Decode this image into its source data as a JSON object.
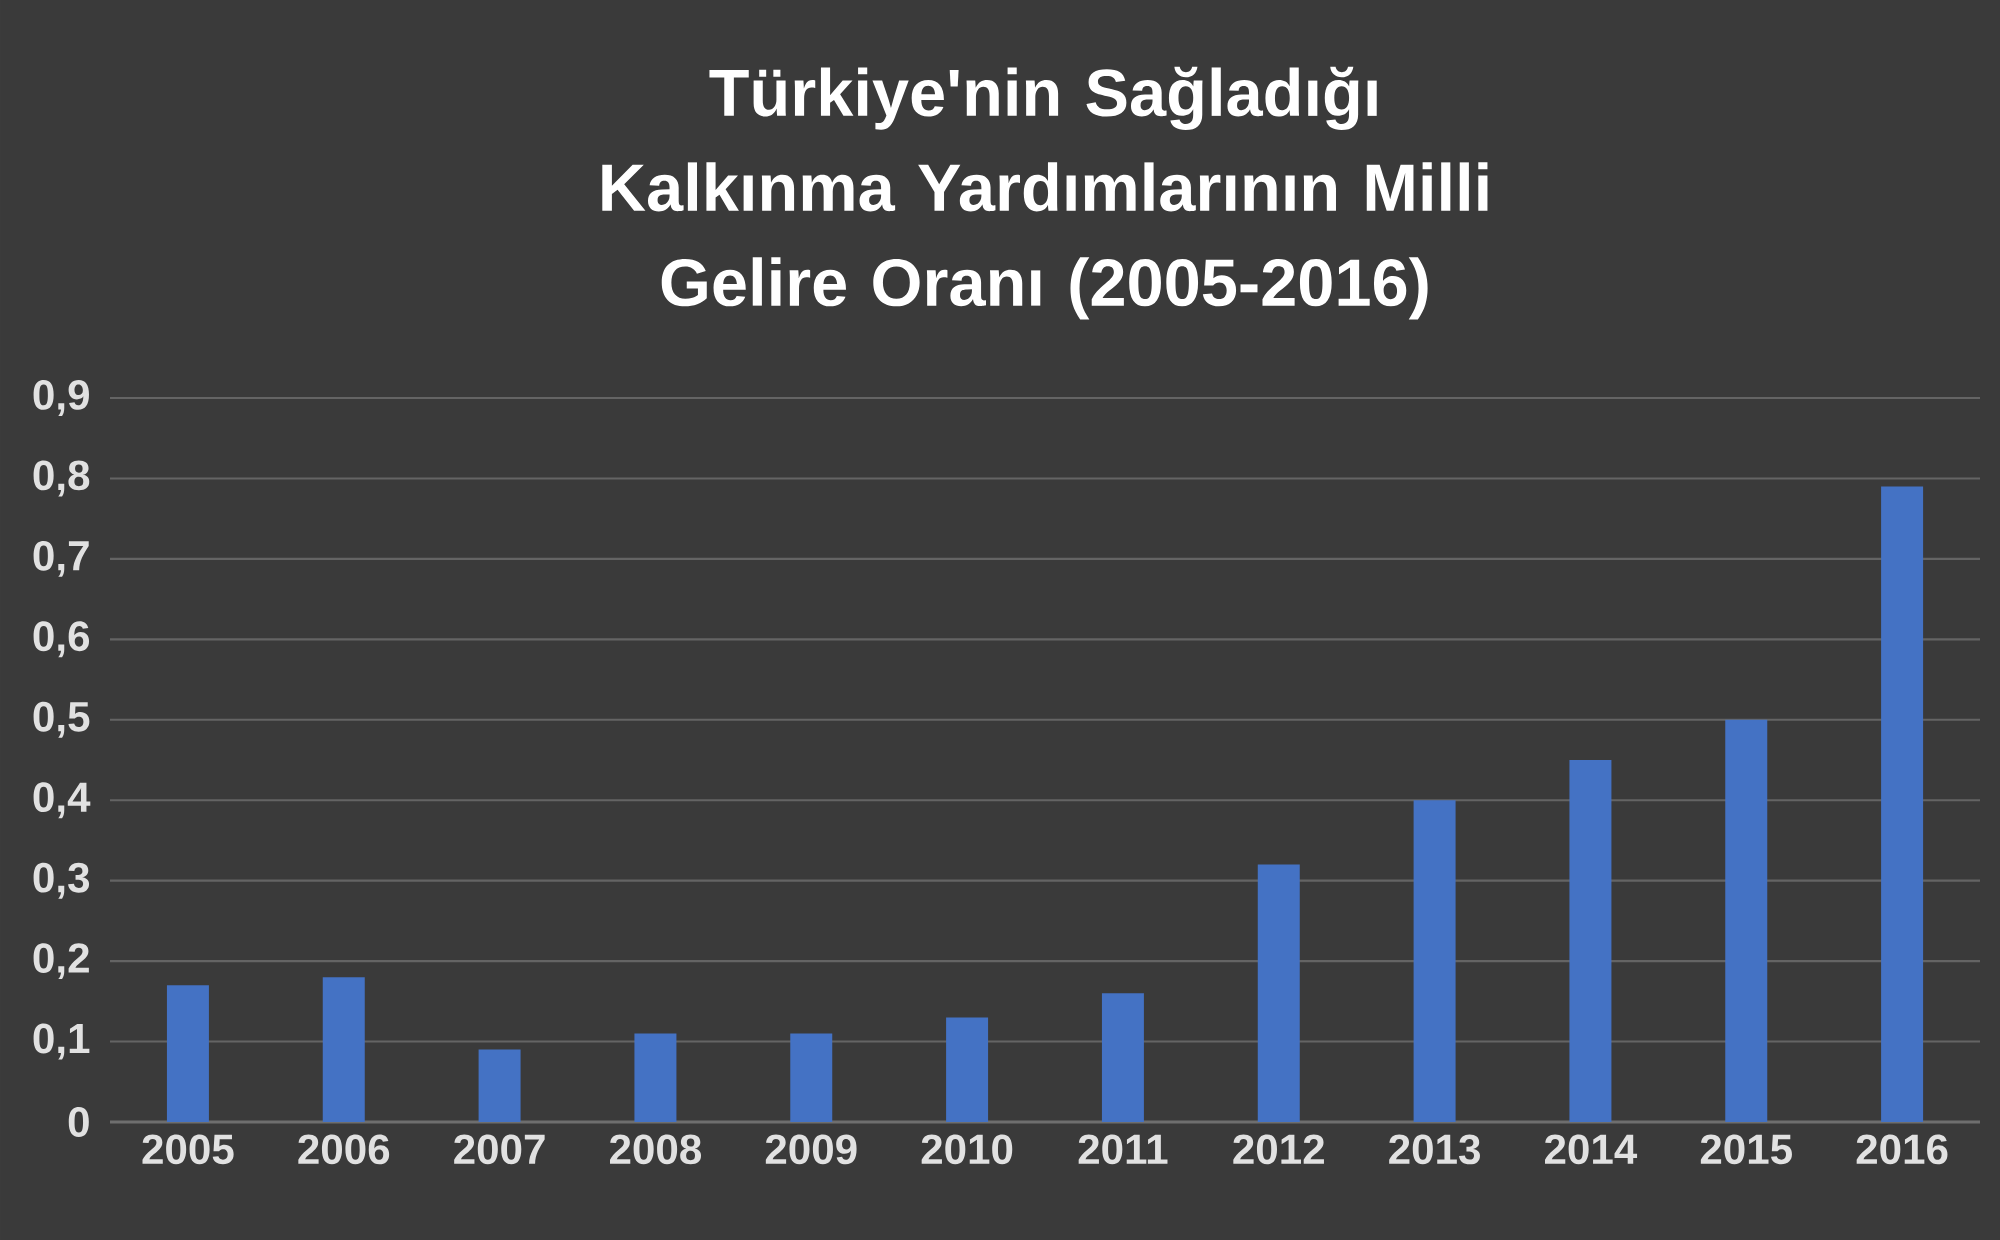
{
  "chart_data": {
    "type": "bar",
    "title": "Türkiye'nin Sağladığı Kalkınma Yardımlarının Milli Gelire Oranı (2005-2016)",
    "categories": [
      "2005",
      "2006",
      "2007",
      "2008",
      "2009",
      "2010",
      "2011",
      "2012",
      "2013",
      "2014",
      "2015",
      "2016"
    ],
    "values": [
      0.17,
      0.18,
      0.09,
      0.11,
      0.11,
      0.13,
      0.16,
      0.32,
      0.4,
      0.45,
      0.5,
      0.79
    ],
    "color": "#4472c4",
    "ylim": [
      0,
      0.9
    ],
    "yticks": [
      0,
      {
        "value": 0.1,
        "label": "0,1"
      },
      {
        "value": 0.2,
        "label": "0,2"
      },
      {
        "value": 0.3,
        "label": "0,3"
      },
      {
        "value": 0.4,
        "label": "0,4"
      },
      {
        "value": 0.5,
        "label": "0,5"
      },
      {
        "value": 0.6,
        "label": "0,6"
      },
      {
        "value": 0.7,
        "label": "0,7"
      },
      {
        "value": 0.8,
        "label": "0,8"
      },
      {
        "value": 0.9,
        "label": "0,9"
      }
    ],
    "grid": "y"
  }
}
